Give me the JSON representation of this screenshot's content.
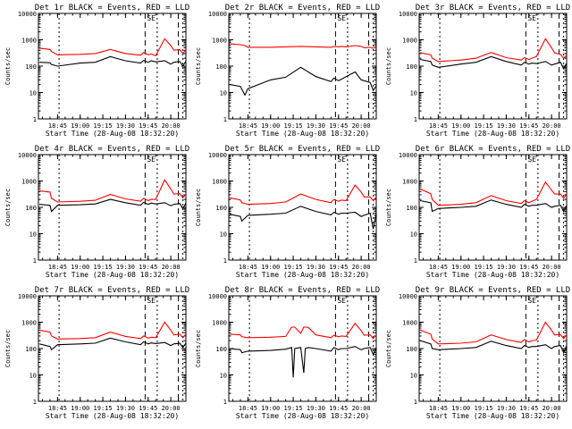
{
  "page": {
    "tick_labels_x": [
      "18:45",
      "19:00",
      "19:15",
      "19:30",
      "19:45",
      "20:00"
    ],
    "tick_labels_y": [
      "1",
      "10",
      "100",
      "1000",
      "10000"
    ],
    "ylabel": "Counts/sec",
    "xlabel": "Start Time (28-Aug-08 18:32:20)",
    "marker_text": "SE",
    "colors": {
      "events": "#000000",
      "lld": "#ff0000",
      "axes": "#000000",
      "background": "#ffffff"
    }
  },
  "chart_data": [
    {
      "type": "line",
      "title": "Det 1r BLACK = Events, RED = LLD",
      "xlabel": "Start Time (28-Aug-08 18:32:20)",
      "ylabel": "Counts/sec",
      "yscale": "log",
      "ylim": [
        1,
        10000
      ],
      "xlim": [
        "18:32:20",
        "20:10:00"
      ],
      "grid": false,
      "series": [
        {
          "name": "Events",
          "color": "#000000",
          "x": [
            "18:33",
            "18:40",
            "18:41",
            "18:45",
            "19:00",
            "19:10",
            "19:20",
            "19:30",
            "19:40",
            "19:42",
            "19:45",
            "19:47",
            "19:50",
            "19:56",
            "20:00",
            "20:02",
            "20:06",
            "20:08",
            "20:10"
          ],
          "values": [
            140,
            135,
            115,
            100,
            130,
            140,
            230,
            160,
            130,
            165,
            140,
            160,
            145,
            160,
            120,
            140,
            150,
            100,
            155
          ]
        },
        {
          "name": "LLD",
          "color": "#ff0000",
          "x": [
            "18:33",
            "18:40",
            "18:41",
            "18:45",
            "19:00",
            "19:10",
            "19:20",
            "19:30",
            "19:40",
            "19:42",
            "19:45",
            "19:47",
            "19:50",
            "19:56",
            "20:00",
            "20:02",
            "20:06",
            "20:08",
            "20:10"
          ],
          "values": [
            480,
            430,
            360,
            270,
            280,
            300,
            430,
            300,
            260,
            330,
            270,
            290,
            250,
            1100,
            600,
            400,
            420,
            300,
            420
          ]
        }
      ]
    },
    {
      "type": "line",
      "title": "Det 2r BLACK = Events, RED = LLD",
      "xlabel": "Start Time (28-Aug-08 18:32:20)",
      "ylabel": "Counts/sec",
      "yscale": "log",
      "ylim": [
        1,
        10000
      ],
      "xlim": [
        "18:32:20",
        "20:10:00"
      ],
      "grid": false,
      "series": [
        {
          "name": "Events",
          "color": "#000000",
          "x": [
            "18:33",
            "18:40",
            "18:43",
            "18:45",
            "19:00",
            "19:10",
            "19:20",
            "19:30",
            "19:40",
            "19:42",
            "19:45",
            "19:47",
            "19:50",
            "19:56",
            "20:00",
            "20:02",
            "20:06",
            "20:08",
            "20:10"
          ],
          "values": [
            20,
            17,
            8,
            14,
            30,
            38,
            90,
            40,
            26,
            35,
            28,
            32,
            40,
            60,
            30,
            28,
            24,
            12,
            18
          ]
        },
        {
          "name": "LLD",
          "color": "#ff0000",
          "x": [
            "18:33",
            "18:40",
            "18:43",
            "18:45",
            "19:00",
            "19:10",
            "19:20",
            "19:30",
            "19:40",
            "19:42",
            "19:45",
            "19:47",
            "19:50",
            "19:56",
            "20:00",
            "20:02",
            "20:06",
            "20:08",
            "20:10"
          ],
          "values": [
            700,
            650,
            600,
            520,
            520,
            540,
            560,
            540,
            520,
            560,
            540,
            560,
            540,
            600,
            560,
            500,
            520,
            480,
            520
          ]
        }
      ]
    },
    {
      "type": "line",
      "title": "Det 3r BLACK = Events, RED = LLD",
      "xlabel": "Start Time (28-Aug-08 18:32:20)",
      "ylabel": "Counts/sec",
      "yscale": "log",
      "ylim": [
        1,
        10000
      ],
      "xlim": [
        "18:32:20",
        "20:10:00"
      ],
      "grid": false,
      "series": [
        {
          "name": "Events",
          "color": "#000000",
          "x": [
            "18:33",
            "18:40",
            "18:41",
            "18:45",
            "19:00",
            "19:10",
            "19:20",
            "19:30",
            "19:40",
            "19:42",
            "19:45",
            "19:47",
            "19:50",
            "19:56",
            "20:00",
            "20:02",
            "20:06",
            "20:08",
            "20:10"
          ],
          "values": [
            180,
            150,
            110,
            90,
            120,
            140,
            230,
            150,
            110,
            140,
            120,
            130,
            125,
            150,
            110,
            120,
            140,
            80,
            130
          ]
        },
        {
          "name": "LLD",
          "color": "#ff0000",
          "x": [
            "18:33",
            "18:40",
            "18:41",
            "18:45",
            "19:00",
            "19:10",
            "19:20",
            "19:30",
            "19:40",
            "19:42",
            "19:45",
            "19:47",
            "19:50",
            "19:56",
            "20:00",
            "20:02",
            "20:06",
            "20:08",
            "20:10"
          ],
          "values": [
            320,
            270,
            200,
            150,
            170,
            200,
            330,
            210,
            170,
            210,
            180,
            200,
            230,
            1100,
            500,
            320,
            280,
            200,
            260
          ]
        }
      ]
    },
    {
      "type": "line",
      "title": "Det 4r BLACK = Events, RED = LLD",
      "xlabel": "Start Time (28-Aug-08 18:32:20)",
      "ylabel": "Counts/sec",
      "yscale": "log",
      "ylim": [
        1,
        10000
      ],
      "xlim": [
        "18:32:20",
        "20:10:00"
      ],
      "grid": false,
      "series": [
        {
          "name": "Events",
          "color": "#000000",
          "x": [
            "18:33",
            "18:40",
            "18:41",
            "18:45",
            "19:00",
            "19:10",
            "19:20",
            "19:30",
            "19:40",
            "19:42",
            "19:45",
            "19:47",
            "19:50",
            "19:56",
            "20:00",
            "20:02",
            "20:06",
            "20:08",
            "20:10"
          ],
          "values": [
            130,
            120,
            70,
            120,
            125,
            135,
            200,
            150,
            120,
            155,
            130,
            145,
            135,
            150,
            115,
            130,
            140,
            90,
            145
          ]
        },
        {
          "name": "LLD",
          "color": "#ff0000",
          "x": [
            "18:33",
            "18:40",
            "18:41",
            "18:45",
            "19:00",
            "19:10",
            "19:20",
            "19:30",
            "19:40",
            "19:42",
            "19:45",
            "19:47",
            "19:50",
            "19:56",
            "20:00",
            "20:02",
            "20:06",
            "20:08",
            "20:10"
          ],
          "values": [
            420,
            380,
            220,
            160,
            170,
            185,
            310,
            210,
            170,
            220,
            180,
            200,
            200,
            1100,
            500,
            320,
            330,
            230,
            320
          ]
        }
      ]
    },
    {
      "type": "line",
      "title": "Det 5r BLACK = Events, RED = LLD",
      "xlabel": "Start Time (28-Aug-08 18:32:20)",
      "ylabel": "Counts/sec",
      "yscale": "log",
      "ylim": [
        1,
        10000
      ],
      "xlim": [
        "18:32:20",
        "20:10:00"
      ],
      "grid": false,
      "series": [
        {
          "name": "Events",
          "color": "#000000",
          "x": [
            "18:33",
            "18:40",
            "18:41",
            "18:45",
            "19:00",
            "19:10",
            "19:20",
            "19:30",
            "19:40",
            "19:42",
            "19:45",
            "19:47",
            "19:50",
            "19:56",
            "20:00",
            "20:02",
            "20:06",
            "20:08",
            "20:10"
          ],
          "values": [
            55,
            45,
            30,
            50,
            55,
            60,
            110,
            70,
            52,
            65,
            55,
            60,
            60,
            65,
            45,
            50,
            60,
            15,
            60
          ]
        },
        {
          "name": "LLD",
          "color": "#ff0000",
          "x": [
            "18:33",
            "18:40",
            "18:41",
            "18:45",
            "19:00",
            "19:10",
            "19:20",
            "19:30",
            "19:40",
            "19:42",
            "19:45",
            "19:47",
            "19:50",
            "19:56",
            "20:00",
            "20:02",
            "20:06",
            "20:08",
            "20:10"
          ],
          "values": [
            230,
            190,
            150,
            130,
            140,
            160,
            320,
            200,
            150,
            200,
            170,
            190,
            180,
            700,
            380,
            250,
            250,
            180,
            250
          ]
        }
      ]
    },
    {
      "type": "line",
      "title": "Det 6r BLACK = Events, RED = LLD",
      "xlabel": "Start Time (28-Aug-08 18:32:20)",
      "ylabel": "Counts/sec",
      "yscale": "log",
      "ylim": [
        1,
        10000
      ],
      "xlim": [
        "18:32:20",
        "20:10:00"
      ],
      "grid": false,
      "series": [
        {
          "name": "Events",
          "color": "#000000",
          "x": [
            "18:33",
            "18:40",
            "18:41",
            "18:45",
            "19:00",
            "19:10",
            "19:20",
            "19:30",
            "19:40",
            "19:42",
            "19:45",
            "19:47",
            "19:50",
            "19:56",
            "20:00",
            "20:02",
            "20:06",
            "20:08",
            "20:10"
          ],
          "values": [
            180,
            150,
            70,
            90,
            100,
            110,
            190,
            130,
            100,
            130,
            110,
            120,
            120,
            140,
            100,
            110,
            120,
            70,
            120
          ]
        },
        {
          "name": "LLD",
          "color": "#ff0000",
          "x": [
            "18:33",
            "18:40",
            "18:41",
            "18:45",
            "19:00",
            "19:10",
            "19:20",
            "19:30",
            "19:40",
            "19:42",
            "19:45",
            "19:47",
            "19:50",
            "19:56",
            "20:00",
            "20:02",
            "20:06",
            "20:08",
            "20:10"
          ],
          "values": [
            500,
            330,
            200,
            120,
            130,
            150,
            280,
            180,
            140,
            180,
            150,
            170,
            200,
            900,
            450,
            320,
            320,
            220,
            320
          ]
        }
      ]
    },
    {
      "type": "line",
      "title": "Det 7r BLACK = Events, RED = LLD",
      "xlabel": "Start Time (28-Aug-08 18:32:20)",
      "ylabel": "Counts/sec",
      "yscale": "log",
      "ylim": [
        1,
        10000
      ],
      "xlim": [
        "18:32:20",
        "20:10:00"
      ],
      "grid": false,
      "series": [
        {
          "name": "Events",
          "color": "#000000",
          "x": [
            "18:33",
            "18:40",
            "18:41",
            "18:45",
            "19:00",
            "19:10",
            "19:20",
            "19:30",
            "19:40",
            "19:42",
            "19:45",
            "19:47",
            "19:50",
            "19:56",
            "20:00",
            "20:02",
            "20:06",
            "20:08",
            "20:10"
          ],
          "values": [
            150,
            120,
            90,
            140,
            150,
            160,
            250,
            180,
            140,
            180,
            150,
            165,
            155,
            170,
            130,
            150,
            160,
            110,
            160
          ]
        },
        {
          "name": "LLD",
          "color": "#ff0000",
          "x": [
            "18:33",
            "18:40",
            "18:41",
            "18:45",
            "19:00",
            "19:10",
            "19:20",
            "19:30",
            "19:40",
            "19:42",
            "19:45",
            "19:47",
            "19:50",
            "19:56",
            "20:00",
            "20:02",
            "20:06",
            "20:08",
            "20:10"
          ],
          "values": [
            500,
            420,
            300,
            230,
            240,
            260,
            420,
            290,
            240,
            300,
            250,
            270,
            260,
            1000,
            500,
            330,
            350,
            260,
            350
          ]
        }
      ]
    },
    {
      "type": "line",
      "title": "Det 8r BLACK = Events, RED = LLD",
      "xlabel": "Start Time (28-Aug-08 18:32:20)",
      "ylabel": "Counts/sec",
      "yscale": "log",
      "ylim": [
        1,
        10000
      ],
      "xlim": [
        "18:32:20",
        "20:10:00"
      ],
      "grid": false,
      "series": [
        {
          "name": "Events",
          "color": "#000000",
          "x": [
            "18:33",
            "18:40",
            "18:41",
            "18:45",
            "19:00",
            "19:10",
            "19:14",
            "19:15",
            "19:16",
            "19:20",
            "19:22",
            "19:23",
            "19:25",
            "19:30",
            "19:40",
            "19:42",
            "19:45",
            "19:47",
            "19:50",
            "19:56",
            "20:00",
            "20:02",
            "20:06",
            "20:08",
            "20:10"
          ],
          "values": [
            100,
            90,
            70,
            80,
            85,
            95,
            110,
            8,
            100,
            110,
            12,
            100,
            110,
            100,
            80,
            110,
            90,
            100,
            100,
            120,
            90,
            100,
            110,
            60,
            110
          ]
        },
        {
          "name": "LLD",
          "color": "#ff0000",
          "x": [
            "18:33",
            "18:40",
            "18:41",
            "18:45",
            "19:00",
            "19:10",
            "19:14",
            "19:15",
            "19:16",
            "19:20",
            "19:22",
            "19:23",
            "19:25",
            "19:30",
            "19:40",
            "19:42",
            "19:45",
            "19:47",
            "19:50",
            "19:56",
            "20:00",
            "20:02",
            "20:06",
            "20:08",
            "20:10"
          ],
          "values": [
            350,
            330,
            280,
            260,
            270,
            290,
            650,
            650,
            650,
            380,
            650,
            650,
            640,
            330,
            260,
            320,
            280,
            300,
            290,
            900,
            480,
            320,
            330,
            240,
            330
          ]
        }
      ]
    },
    {
      "type": "line",
      "title": "Det 9r BLACK = Events, RED = LLD",
      "xlabel": "Start Time (28-Aug-08 18:32:20)",
      "ylabel": "Counts/sec",
      "yscale": "log",
      "ylim": [
        1,
        10000
      ],
      "xlim": [
        "18:32:20",
        "20:10:00"
      ],
      "grid": false,
      "series": [
        {
          "name": "Events",
          "color": "#000000",
          "x": [
            "18:33",
            "18:40",
            "18:41",
            "18:45",
            "19:00",
            "19:10",
            "19:20",
            "19:30",
            "19:40",
            "19:42",
            "19:45",
            "19:47",
            "19:50",
            "19:56",
            "20:00",
            "20:02",
            "20:06",
            "20:08",
            "20:10"
          ],
          "values": [
            200,
            150,
            100,
            90,
            100,
            110,
            190,
            130,
            100,
            130,
            110,
            120,
            120,
            140,
            100,
            120,
            130,
            70,
            130
          ]
        },
        {
          "name": "LLD",
          "color": "#ff0000",
          "x": [
            "18:33",
            "18:40",
            "18:41",
            "18:45",
            "19:00",
            "19:10",
            "19:20",
            "19:30",
            "19:40",
            "19:42",
            "19:45",
            "19:47",
            "19:50",
            "19:56",
            "20:00",
            "20:02",
            "20:06",
            "20:08",
            "20:10"
          ],
          "values": [
            500,
            350,
            230,
            150,
            160,
            180,
            330,
            220,
            170,
            220,
            180,
            200,
            210,
            1000,
            500,
            330,
            340,
            240,
            340
          ]
        }
      ]
    }
  ]
}
